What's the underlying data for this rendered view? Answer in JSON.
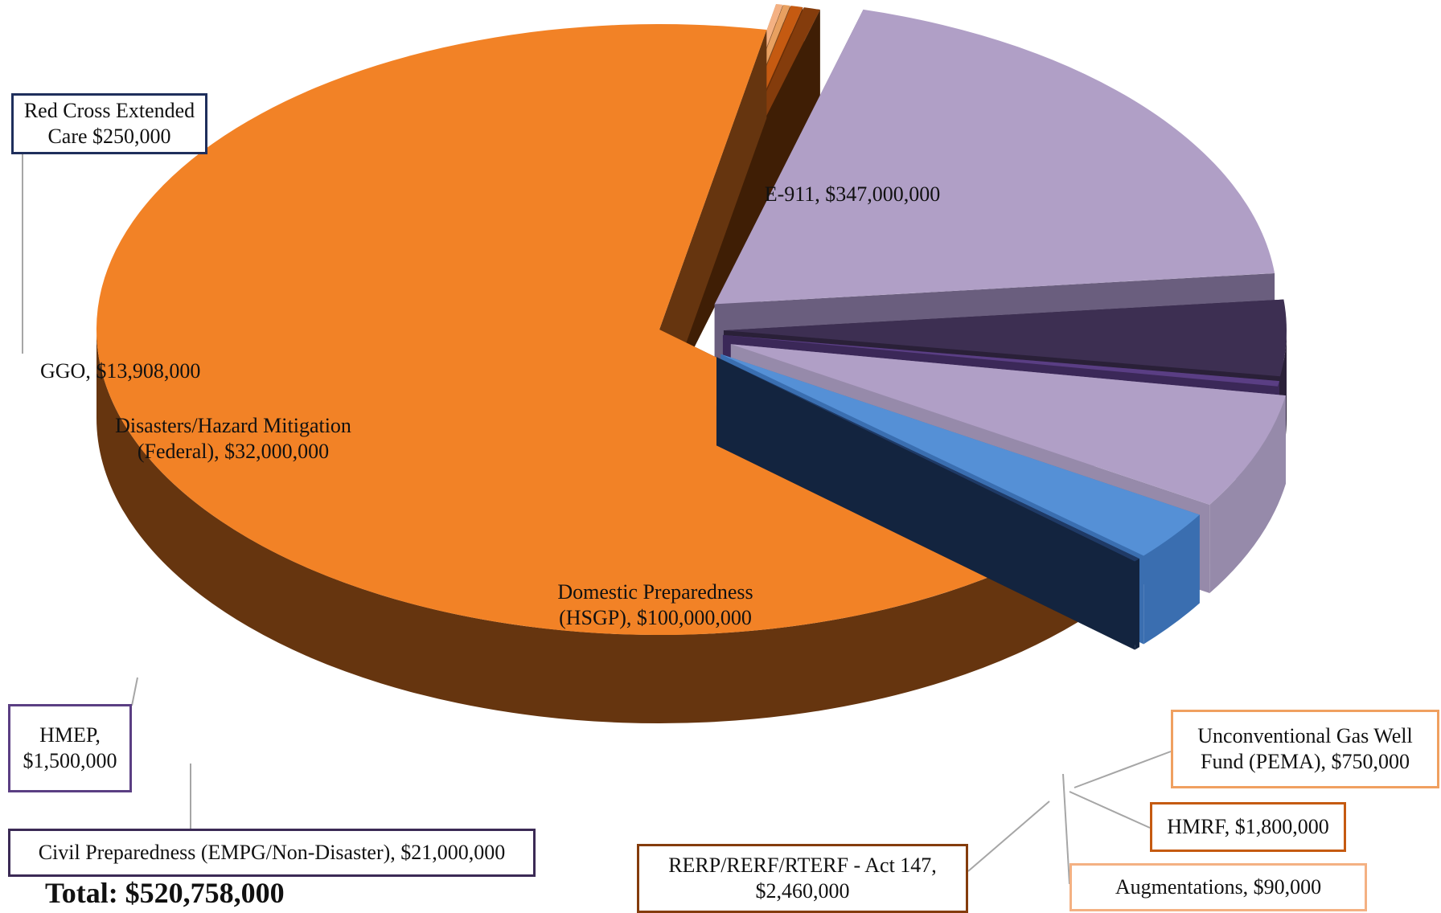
{
  "chart_data": {
    "type": "pie",
    "slices": [
      {
        "name": "E-911",
        "value": 347000000,
        "color": "#F28226",
        "side": "#66350F",
        "label": [
          "E-911, $347,000,000"
        ]
      },
      {
        "name": "Augmentations",
        "value": 90000,
        "color": "#F4B183",
        "side": "#8E5B35",
        "label": [
          "Augmentations, $90,000"
        ]
      },
      {
        "name": "Unconventional Gas Well Fund (PEMA)",
        "value": 750000,
        "color": "#E8A060",
        "side": "#7A4A20",
        "label": [
          "Unconventional Gas Well",
          "Fund (PEMA), $750,000"
        ]
      },
      {
        "name": "HMRF",
        "value": 1800000,
        "color": "#C55A11",
        "side": "#6A2E07",
        "label": [
          "HMRF, $1,800,000"
        ]
      },
      {
        "name": "RERP/RERF/RTERF - Act 147",
        "value": 2460000,
        "color": "#843C0C",
        "side": "#3F1E05",
        "label": [
          "RERP/RERF/RTERF - Act 147,",
          "$2,460,000"
        ]
      },
      {
        "name": "Domestic Preparedness (HSGP)",
        "value": 100000000,
        "color": "#B09FC6",
        "side": "#6A5E7E",
        "label": [
          "Domestic Preparedness",
          "(HSGP), $100,000,000"
        ]
      },
      {
        "name": "Civil Preparedness (EMPG/Non-Disaster)",
        "value": 21000000,
        "color": "#3D2F52",
        "side": "#2A2038",
        "label": [
          "Civil Preparedness (EMPG/Non-Disaster), $21,000,000"
        ]
      },
      {
        "name": "HMEP",
        "value": 1500000,
        "color": "#5A3E84",
        "side": "#3B2858",
        "label": [
          "HMEP,",
          "$1,500,000"
        ]
      },
      {
        "name": "Disasters/Hazard Mitigation (Federal)",
        "value": 32000000,
        "color": "#B09FC6",
        "side": "#968AAA",
        "label": [
          "Disasters/Hazard Mitigation",
          "(Federal), $32,000,000"
        ]
      },
      {
        "name": "GGO",
        "value": 13908000,
        "color": "#5590D6",
        "side": "#3A6EB0",
        "label": [
          "GGO, $13,908,000"
        ]
      },
      {
        "name": "Red Cross Extended Care",
        "value": 250000,
        "color": "#1F3A66",
        "side": "#13243F",
        "label": [
          "Red Cross Extended",
          "Care  $250,000"
        ]
      }
    ],
    "legend": "none",
    "annotation": "Total: $520,758,000"
  },
  "callout_borders": {
    "Red Cross Extended Care": "#1f2f5c",
    "HMEP": "#5b3f83",
    "Civil Preparedness (EMPG/Non-Disaster)": "#3b2a55",
    "RERP/RERF/RTERF - Act 147": "#843C0C",
    "Augmentations": "#F4B183",
    "HMRF": "#C55A11",
    "Unconventional Gas Well Fund (PEMA)": "#F0A060"
  }
}
